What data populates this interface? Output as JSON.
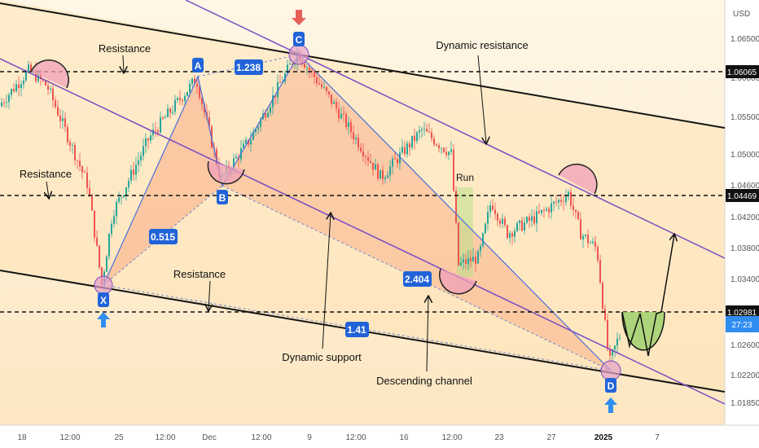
{
  "chart_data": {
    "type": "candlestick",
    "currency": "USD",
    "y_axis": {
      "min": 1.0158,
      "max": 1.0694,
      "ticks": [
        "1.06500",
        "1.06000",
        "1.05500",
        "1.05000",
        "1.04600",
        "1.04200",
        "1.03800",
        "1.03400",
        "1.03000",
        "1.02600",
        "1.02200",
        "1.01850"
      ]
    },
    "x_axis": {
      "ticks": [
        "18",
        "12:00",
        "25",
        "12:00",
        "Dec",
        "12:00",
        "9",
        "12:00",
        "16",
        "12:00",
        "23",
        "27",
        "2025",
        "7"
      ]
    },
    "price_levels": [
      {
        "value": 1.06065,
        "label": "1.06065"
      },
      {
        "value": 1.04469,
        "label": "1.04469"
      },
      {
        "value": 1.02981,
        "label": "1.02981"
      }
    ],
    "current_price": {
      "label": "1.02698",
      "countdown": "27:23"
    },
    "harmonic_points": [
      {
        "name": "X",
        "price": 1.0335
      },
      {
        "name": "A",
        "price": 1.0595
      },
      {
        "name": "B",
        "price": 1.0468
      },
      {
        "name": "C",
        "price": 1.0628
      },
      {
        "name": "D",
        "price": 1.0235
      }
    ],
    "ratios": [
      "0.515",
      "1.238",
      "2.404",
      "1.41"
    ],
    "annotations": [
      "Resistance",
      "Resistance",
      "Resistance",
      "Dynamic resistance",
      "Dynamic support",
      "Descending channel",
      "Run"
    ]
  }
}
